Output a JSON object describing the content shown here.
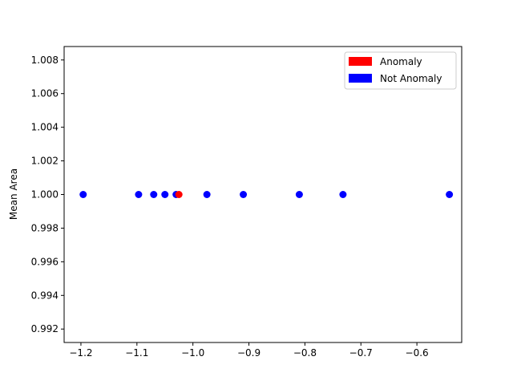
{
  "chart_data": {
    "type": "scatter",
    "title": "",
    "xlabel": "",
    "ylabel": "Mean Area",
    "xlim": [
      -1.23,
      -0.52
    ],
    "ylim": [
      0.9912,
      1.0088
    ],
    "xticks": [
      -1.2,
      -1.1,
      -1.0,
      -0.9,
      -0.8,
      -0.7,
      -0.6
    ],
    "xtick_labels": [
      "−1.2",
      "−1.1",
      "−1.0",
      "−0.9",
      "−0.8",
      "−0.7",
      "−0.6"
    ],
    "yticks": [
      0.992,
      0.994,
      0.996,
      0.998,
      1.0,
      1.002,
      1.004,
      1.006,
      1.008
    ],
    "ytick_labels": [
      "0.992",
      "0.994",
      "0.996",
      "0.998",
      "1.000",
      "1.002",
      "1.004",
      "1.006",
      "1.008"
    ],
    "grid": false,
    "legend_position": "top-right",
    "series": [
      {
        "name": "Not Anomaly",
        "color": "#0000ff",
        "points": [
          {
            "x": -1.196,
            "y": 1.0
          },
          {
            "x": -1.097,
            "y": 1.0
          },
          {
            "x": -1.07,
            "y": 1.0
          },
          {
            "x": -1.05,
            "y": 1.0
          },
          {
            "x": -1.03,
            "y": 1.0
          },
          {
            "x": -0.975,
            "y": 1.0
          },
          {
            "x": -0.91,
            "y": 1.0
          },
          {
            "x": -0.81,
            "y": 1.0
          },
          {
            "x": -0.732,
            "y": 1.0
          },
          {
            "x": -0.542,
            "y": 1.0
          }
        ]
      },
      {
        "name": "Anomaly",
        "color": "#ff0000",
        "points": [
          {
            "x": -1.025,
            "y": 1.0
          }
        ]
      }
    ],
    "legend": [
      {
        "label": "Anomaly",
        "color": "#ff0000"
      },
      {
        "label": "Not Anomaly",
        "color": "#0000ff"
      }
    ]
  }
}
